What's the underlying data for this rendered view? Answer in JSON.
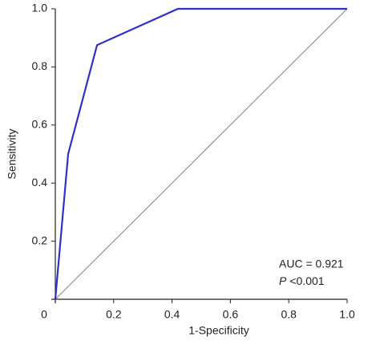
{
  "chart_data": {
    "type": "line",
    "xlabel": "1-Specificity",
    "ylabel": "Sensitivity",
    "series": [
      {
        "color": "#3030c8",
        "x": [
          0,
          0.044,
          0.143,
          0.42,
          1
        ],
        "values": [
          0,
          0.5,
          0.875,
          1,
          1
        ]
      },
      {
        "color": "#808080",
        "x": [
          0,
          1
        ],
        "values": [
          0,
          1
        ]
      }
    ],
    "xlim": [
      0,
      1
    ],
    "ylim": [
      0,
      1
    ],
    "xticks": [
      0,
      0.2,
      0.4,
      0.6,
      0.8,
      {
        "value": 1,
        "label": "1.0"
      }
    ],
    "yticks": [
      0.2,
      0.4,
      0.6,
      0.8,
      {
        "value": 1,
        "label": "1.0"
      }
    ],
    "annotations": {
      "auc": "AUC = 0.921",
      "p_symbol": "P",
      "p_value": "<0.001"
    }
  }
}
